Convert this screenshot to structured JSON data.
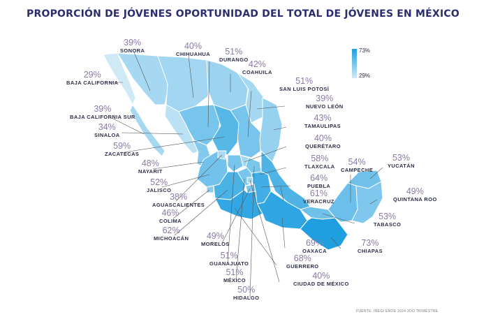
{
  "title": "PROPORCIÓN DE JÓVENES OPORTUNIDAD DEL TOTAL DE JÓVENES EN MÉXICO",
  "legend": {
    "max": "73%",
    "min": "29%",
    "color_max": "#1f9fe0",
    "color_min": "#cfe9f7"
  },
  "source": "FUENTE: INEGI ENOE 2024 2DO TRIMESTRE",
  "states": [
    {
      "name": "SONORA",
      "pct": "39%"
    },
    {
      "name": "CHIHUAHUA",
      "pct": "40%"
    },
    {
      "name": "DURANGO",
      "pct": "51%"
    },
    {
      "name": "COAHUILA",
      "pct": "42%"
    },
    {
      "name": "BAJA CALIFORNIA",
      "pct": "29%"
    },
    {
      "name": "SAN LUIS POTOSÍ",
      "pct": "51%"
    },
    {
      "name": "NUEVO LEÓN",
      "pct": "39%"
    },
    {
      "name": "BAJA CALIFORNIA SUR",
      "pct": "39%"
    },
    {
      "name": "TAMAULIPAS",
      "pct": "43%"
    },
    {
      "name": "SINALOA",
      "pct": "34%"
    },
    {
      "name": "QUERÉTARO",
      "pct": "40%"
    },
    {
      "name": "ZACATECAS",
      "pct": "59%"
    },
    {
      "name": "NAYARIT",
      "pct": "48%"
    },
    {
      "name": "TLAXCALA",
      "pct": "58%"
    },
    {
      "name": "CAMPECHE",
      "pct": "54%"
    },
    {
      "name": "YUCATÁN",
      "pct": "53%"
    },
    {
      "name": "JALISCO",
      "pct": "52%"
    },
    {
      "name": "PUEBLA",
      "pct": "64%"
    },
    {
      "name": "AGUASCALIENTES",
      "pct": "38%"
    },
    {
      "name": "VERACRUZ",
      "pct": "61%"
    },
    {
      "name": "QUINTANA ROO",
      "pct": "49%"
    },
    {
      "name": "COLIMA",
      "pct": "46%"
    },
    {
      "name": "TABASCO",
      "pct": "53%"
    },
    {
      "name": "MICHOACÁN",
      "pct": "62%"
    },
    {
      "name": "OAXACA",
      "pct": "69%"
    },
    {
      "name": "CHIAPAS",
      "pct": "73%"
    },
    {
      "name": "MORELOS",
      "pct": "49%"
    },
    {
      "name": "GUERRERO",
      "pct": "68%"
    },
    {
      "name": "GUANAJUATO",
      "pct": "51%"
    },
    {
      "name": "MÉXICO",
      "pct": "51%"
    },
    {
      "name": "CIUDAD DE MÉXICO",
      "pct": "40%"
    },
    {
      "name": "HIDALGO",
      "pct": "50%"
    }
  ]
}
